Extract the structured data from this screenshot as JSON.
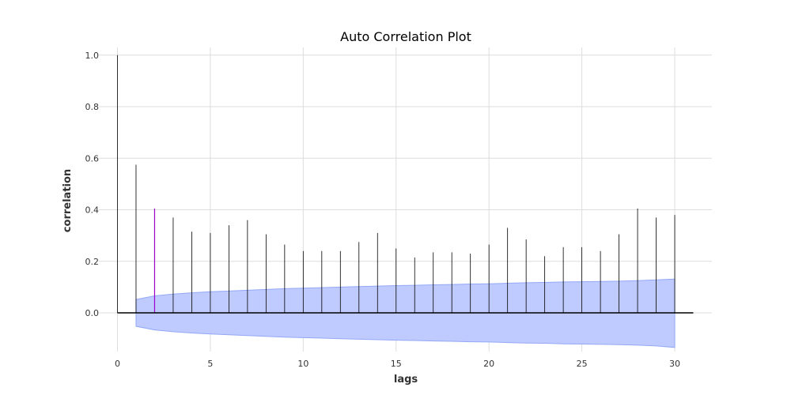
{
  "chart_data": {
    "type": "bar",
    "title": "Auto Correlation Plot",
    "xlabel": "lags",
    "ylabel": "correlation",
    "xlim": [
      -1,
      32
    ],
    "ylim": [
      -0.15,
      1.03
    ],
    "x_ticks": [
      0,
      5,
      10,
      15,
      20,
      25,
      30
    ],
    "y_ticks": [
      0.0,
      0.2,
      0.4,
      0.6,
      0.8,
      1.0
    ],
    "y_tick_labels": [
      "0.0",
      "0.2",
      "0.4",
      "0.6",
      "0.8",
      "1.0"
    ],
    "grid": true,
    "lags": [
      0,
      1,
      2,
      3,
      4,
      5,
      6,
      7,
      8,
      9,
      10,
      11,
      12,
      13,
      14,
      15,
      16,
      17,
      18,
      19,
      20,
      21,
      22,
      23,
      24,
      25,
      26,
      27,
      28,
      29,
      30
    ],
    "values": [
      1.0,
      0.575,
      0.405,
      0.37,
      0.315,
      0.31,
      0.34,
      0.36,
      0.305,
      0.265,
      0.24,
      0.24,
      0.24,
      0.275,
      0.31,
      0.25,
      0.215,
      0.235,
      0.235,
      0.23,
      0.265,
      0.33,
      0.285,
      0.22,
      0.255,
      0.255,
      0.24,
      0.305,
      0.405,
      0.37,
      0.38
    ],
    "highlight_lag": 2,
    "confidence_band": {
      "lags": [
        1,
        2,
        3,
        4,
        5,
        6,
        7,
        8,
        9,
        10,
        11,
        12,
        13,
        14,
        15,
        16,
        17,
        18,
        19,
        20,
        21,
        22,
        23,
        24,
        25,
        26,
        27,
        28,
        29,
        30
      ],
      "upper": [
        0.052,
        0.066,
        0.073,
        0.078,
        0.082,
        0.085,
        0.088,
        0.091,
        0.094,
        0.096,
        0.098,
        0.1,
        0.102,
        0.104,
        0.106,
        0.107,
        0.109,
        0.11,
        0.112,
        0.113,
        0.115,
        0.117,
        0.118,
        0.12,
        0.121,
        0.122,
        0.123,
        0.125,
        0.128,
        0.131
      ],
      "lower": [
        -0.052,
        -0.066,
        -0.073,
        -0.078,
        -0.082,
        -0.085,
        -0.088,
        -0.091,
        -0.094,
        -0.096,
        -0.098,
        -0.1,
        -0.102,
        -0.104,
        -0.106,
        -0.107,
        -0.109,
        -0.11,
        -0.112,
        -0.113,
        -0.115,
        -0.117,
        -0.118,
        -0.12,
        -0.121,
        -0.122,
        -0.123,
        -0.125,
        -0.128,
        -0.134
      ]
    },
    "colors": {
      "stem": "#000000",
      "highlight": "#9900cc",
      "band_fill": "#bfcbff",
      "band_edge": "#93a8f5",
      "baseline": "#000000"
    }
  }
}
